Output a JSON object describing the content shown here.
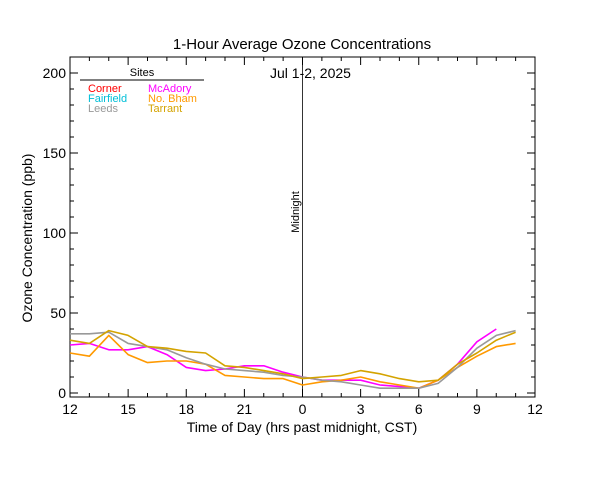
{
  "chart_data": {
    "type": "line",
    "title": "1-Hour Average Ozone Concentrations",
    "date_label": "Jul 1-2, 2025",
    "xlabel": "Time of Day (hrs past midnight, CST)",
    "ylabel": "Ozone Concentration (ppb)",
    "midnight_label": "Midnight",
    "x_ticks": [
      "12",
      "15",
      "18",
      "21",
      "0",
      "3",
      "6",
      "9",
      "12"
    ],
    "xlim": [
      12,
      36
    ],
    "midnight_x": 24,
    "y_ticks": [
      0,
      50,
      100,
      150,
      200
    ],
    "ylim": [
      0,
      210
    ],
    "legend": {
      "header": "Sites",
      "placement": "top-left"
    },
    "series": [
      {
        "name": "Corner",
        "color": "#ff0000",
        "x": [],
        "values": []
      },
      {
        "name": "McAdory",
        "color": "#ff00ff",
        "x": [
          12,
          13,
          14,
          15,
          16,
          17,
          18,
          19,
          20,
          21,
          22,
          23,
          24,
          25,
          26,
          27,
          28,
          29,
          30,
          31,
          32,
          33,
          34
        ],
        "values": [
          30,
          31,
          27,
          27,
          29,
          24,
          16,
          14,
          15,
          17,
          17,
          13,
          10,
          8,
          8,
          8,
          5,
          4,
          3,
          8,
          18,
          32,
          40
        ]
      },
      {
        "name": "Fairfield",
        "color": "#00bfd8",
        "x": [],
        "values": []
      },
      {
        "name": "No. Bham",
        "color": "#ff9900",
        "x": [
          12,
          13,
          14,
          15,
          16,
          17,
          18,
          19,
          20,
          21,
          22,
          23,
          24,
          25,
          26,
          27,
          28,
          29,
          30,
          31,
          32,
          33,
          34,
          35
        ],
        "values": [
          25,
          23,
          36,
          24,
          19,
          20,
          20,
          18,
          11,
          10,
          9,
          9,
          5,
          7,
          8,
          10,
          7,
          5,
          3,
          8,
          16,
          23,
          29,
          31
        ]
      },
      {
        "name": "Leeds",
        "color": "#999999",
        "x": [
          12,
          13,
          14,
          15,
          16,
          17,
          18,
          19,
          20,
          21,
          22,
          23,
          24,
          25,
          26,
          27,
          28,
          29,
          30,
          31,
          32,
          33,
          34,
          35
        ],
        "values": [
          37,
          37,
          38,
          31,
          29,
          27,
          22,
          18,
          15,
          14,
          13,
          11,
          10,
          8,
          7,
          5,
          3,
          3,
          3,
          6,
          16,
          28,
          36,
          39
        ]
      },
      {
        "name": "Tarrant",
        "color": "#d4a300",
        "x": [
          12,
          13,
          14,
          15,
          16,
          17,
          18,
          19,
          20,
          21,
          22,
          23,
          24,
          25,
          26,
          27,
          28,
          29,
          30,
          31,
          32,
          33,
          34,
          35
        ],
        "values": [
          33,
          31,
          39,
          36,
          29,
          28,
          26,
          25,
          17,
          16,
          14,
          12,
          9,
          10,
          11,
          14,
          12,
          9,
          7,
          8,
          18,
          25,
          33,
          38
        ]
      }
    ]
  }
}
